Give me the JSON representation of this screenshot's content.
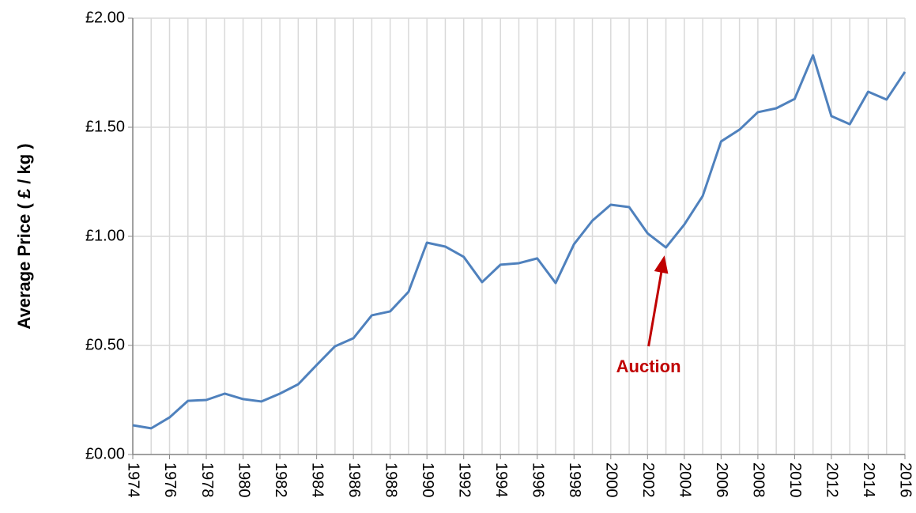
{
  "chart_data": {
    "type": "line",
    "y_label": "Average Price ( £ / kg )",
    "x": [
      1974,
      1975,
      1976,
      1977,
      1978,
      1979,
      1980,
      1981,
      1982,
      1983,
      1984,
      1985,
      1986,
      1987,
      1988,
      1989,
      1990,
      1991,
      1992,
      1993,
      1994,
      1995,
      1996,
      1997,
      1998,
      1999,
      2000,
      2001,
      2002,
      2003,
      2004,
      2005,
      2006,
      2007,
      2008,
      2009,
      2010,
      2011,
      2012,
      2013,
      2014,
      2015,
      2016
    ],
    "series": [
      {
        "color": "#4f81bd",
        "values": [
          0.134,
          0.12,
          0.17,
          0.246,
          0.25,
          0.279,
          0.254,
          0.243,
          0.279,
          0.322,
          0.41,
          0.496,
          0.533,
          0.638,
          0.656,
          0.746,
          0.971,
          0.953,
          0.906,
          0.79,
          0.87,
          0.877,
          0.899,
          0.786,
          0.964,
          1.072,
          1.145,
          1.134,
          1.014,
          0.949,
          1.054,
          1.185,
          1.435,
          1.489,
          1.569,
          1.587,
          1.63,
          1.83,
          1.551,
          1.514,
          1.663,
          1.627,
          1.754
        ]
      }
    ],
    "xlim": [
      1974,
      2016
    ],
    "xticks": [
      1974,
      1976,
      1978,
      1980,
      1982,
      1984,
      1986,
      1988,
      1990,
      1992,
      1994,
      1996,
      1998,
      2000,
      2002,
      2004,
      2006,
      2008,
      2010,
      2012,
      2014,
      2016
    ],
    "ylim": [
      0,
      2
    ],
    "yticks": [
      {
        "value": 0,
        "label": "£0.00"
      },
      {
        "value": 0.5,
        "label": "£0.50"
      },
      {
        "value": 1,
        "label": "£1.00"
      },
      {
        "value": 1.5,
        "label": "£1.50"
      },
      {
        "value": 2,
        "label": "£2.00"
      }
    ],
    "grid": true,
    "annotation": {
      "text": "Auction",
      "x": 2003,
      "color": "#c00000"
    }
  }
}
